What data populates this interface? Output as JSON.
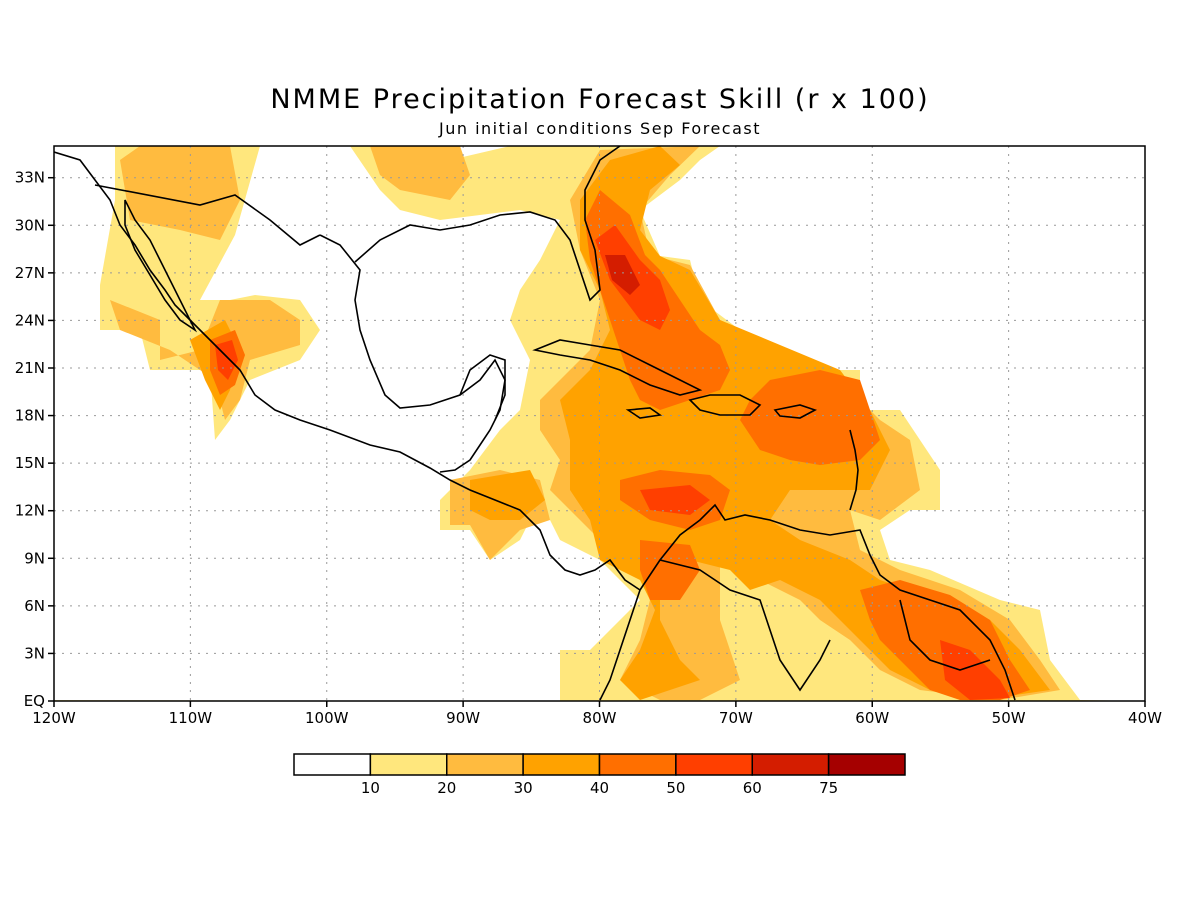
{
  "header": {
    "title": "NMME Precipitation Forecast Skill (r x 100)",
    "subtitle": "Jun initial conditions  Sep Forecast"
  },
  "map": {
    "lon_range": [
      -120,
      -40
    ],
    "lat_range": [
      0,
      35
    ],
    "lon_ticks": [
      "120W",
      "110W",
      "100W",
      "90W",
      "80W",
      "70W",
      "60W",
      "50W",
      "40W"
    ],
    "lat_ticks": [
      "EQ",
      "3N",
      "6N",
      "9N",
      "12N",
      "15N",
      "18N",
      "21N",
      "24N",
      "27N",
      "30N",
      "33N"
    ],
    "grid": true
  },
  "legend": {
    "thresholds": [
      "10",
      "20",
      "30",
      "40",
      "50",
      "60",
      "75"
    ],
    "colors": [
      "#ffffff",
      "#ffe77d",
      "#ffbb3f",
      "#ffa200",
      "#ff6f00",
      "#ff3f00",
      "#d41d00",
      "#a50000"
    ]
  }
}
